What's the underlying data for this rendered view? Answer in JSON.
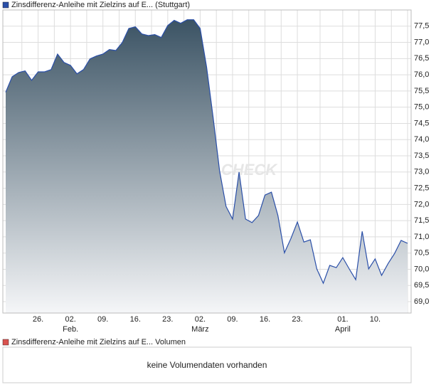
{
  "chart_data": {
    "type": "area",
    "title": "Zinsdifferenz-Anleihe mit Zielzins auf E... (Stuttgart)",
    "watermark": "CHECK",
    "categories": [
      null,
      null,
      null,
      null,
      null,
      "26.",
      null,
      null,
      null,
      null,
      [
        "02.",
        "Feb."
      ],
      null,
      null,
      null,
      null,
      "09.",
      null,
      null,
      null,
      null,
      "16.",
      null,
      null,
      null,
      null,
      "23.",
      null,
      null,
      null,
      null,
      [
        "02.",
        "März"
      ],
      null,
      null,
      null,
      null,
      "09.",
      null,
      null,
      null,
      null,
      "16.",
      null,
      null,
      null,
      null,
      "23.",
      null,
      null,
      null,
      null,
      null,
      null,
      [
        "01.",
        "April"
      ],
      null,
      null,
      null,
      null,
      "10.",
      null,
      null,
      null,
      null,
      null
    ],
    "series": [
      {
        "name": "Zinsdifferenz-Anleihe mit Zielzins auf E... (Stuttgart)",
        "color": "#2a4fa8",
        "values": [
          75.46,
          75.94,
          76.07,
          76.12,
          75.83,
          76.09,
          76.09,
          76.16,
          76.64,
          76.38,
          76.29,
          76.03,
          76.16,
          76.49,
          76.58,
          76.64,
          76.78,
          76.75,
          77.0,
          77.43,
          77.48,
          77.26,
          77.21,
          77.24,
          77.15,
          77.52,
          77.68,
          77.59,
          77.7,
          77.7,
          77.43,
          76.23,
          74.69,
          73.04,
          71.94,
          71.55,
          73.0,
          71.55,
          71.44,
          71.66,
          72.29,
          72.38,
          71.66,
          70.51,
          70.95,
          71.46,
          70.84,
          70.91,
          70.01,
          69.57,
          70.12,
          70.05,
          70.36,
          70.01,
          69.68,
          71.17,
          70.01,
          70.32,
          69.81,
          70.18,
          70.49,
          70.89,
          70.8
        ]
      }
    ],
    "ylim": [
      68.65,
      78.0
    ],
    "yticks": [
      {
        "value": 69.0,
        "label": "69,0"
      },
      {
        "value": 69.5,
        "label": "69,5"
      },
      {
        "value": 70.0,
        "label": "70,0"
      },
      {
        "value": 70.5,
        "label": "70,5"
      },
      {
        "value": 71.0,
        "label": "71,0"
      },
      {
        "value": 71.5,
        "label": "71,5"
      },
      {
        "value": 72.0,
        "label": "72,0"
      },
      {
        "value": 72.5,
        "label": "72,5"
      },
      {
        "value": 73.0,
        "label": "73,0"
      },
      {
        "value": 73.5,
        "label": "73,5"
      },
      {
        "value": 74.0,
        "label": "74,0"
      },
      {
        "value": 74.5,
        "label": "74,5"
      },
      {
        "value": 75.0,
        "label": "75,0"
      },
      {
        "value": 75.5,
        "label": "75,5"
      },
      {
        "value": 76.0,
        "label": "76,0"
      },
      {
        "value": 76.5,
        "label": "76,5"
      },
      {
        "value": 77.0,
        "label": "77,0"
      },
      {
        "value": 77.5,
        "label": "77,5"
      }
    ],
    "grid": true,
    "volume": {
      "title": "Zinsdifferenz-Anleihe mit Zielzins auf E... Volumen",
      "color": "#d9534f",
      "message": "keine Volumendaten vorhanden"
    }
  }
}
